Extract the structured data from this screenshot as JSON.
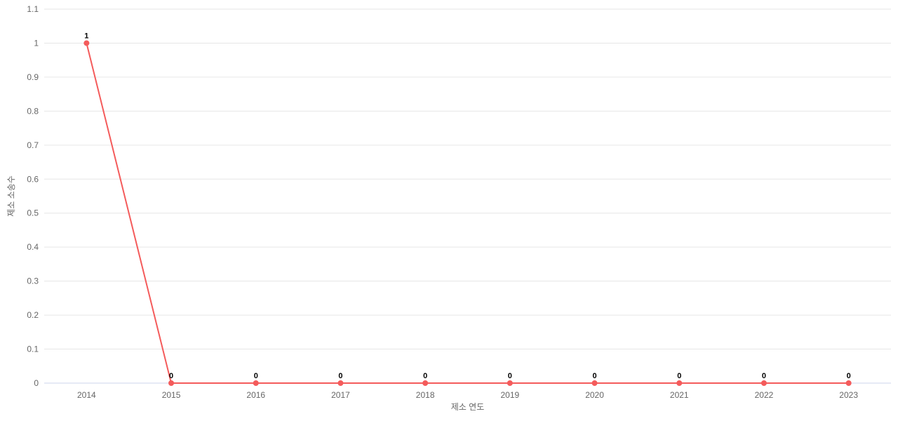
{
  "chart_data": {
    "type": "line",
    "title": "",
    "categories": [
      "2014",
      "2015",
      "2016",
      "2017",
      "2018",
      "2019",
      "2020",
      "2021",
      "2022",
      "2023"
    ],
    "series": [
      {
        "name": "제소 소송수",
        "values": [
          1,
          0,
          0,
          0,
          0,
          0,
          0,
          0,
          0,
          0
        ]
      }
    ],
    "data_labels": [
      "1",
      "0",
      "0",
      "0",
      "0",
      "0",
      "0",
      "0",
      "0",
      "0"
    ],
    "xlabel": "제소 연도",
    "ylabel": "제소 소송수",
    "ylim": [
      0,
      1.1
    ],
    "ytick_values": [
      0,
      0.1,
      0.2,
      0.3,
      0.4,
      0.5,
      0.6,
      0.7,
      0.8,
      0.9,
      1,
      1.1
    ],
    "ytick_labels": [
      "0",
      "0.1",
      "0.2",
      "0.3",
      "0.4",
      "0.5",
      "0.6",
      "0.7",
      "0.8",
      "0.9",
      "1",
      "1.1"
    ],
    "grid": true,
    "legend_position": "none",
    "marker_radius": 4,
    "line_width": 2,
    "colors": {
      "series": "#f45b5b",
      "marker": "#f45b5b",
      "gridline": "#e6e6e6",
      "axis_line": "#ccd6eb",
      "tick_label": "#666666",
      "axis_title": "#666666",
      "data_label": "#000000",
      "background": "#ffffff"
    }
  }
}
